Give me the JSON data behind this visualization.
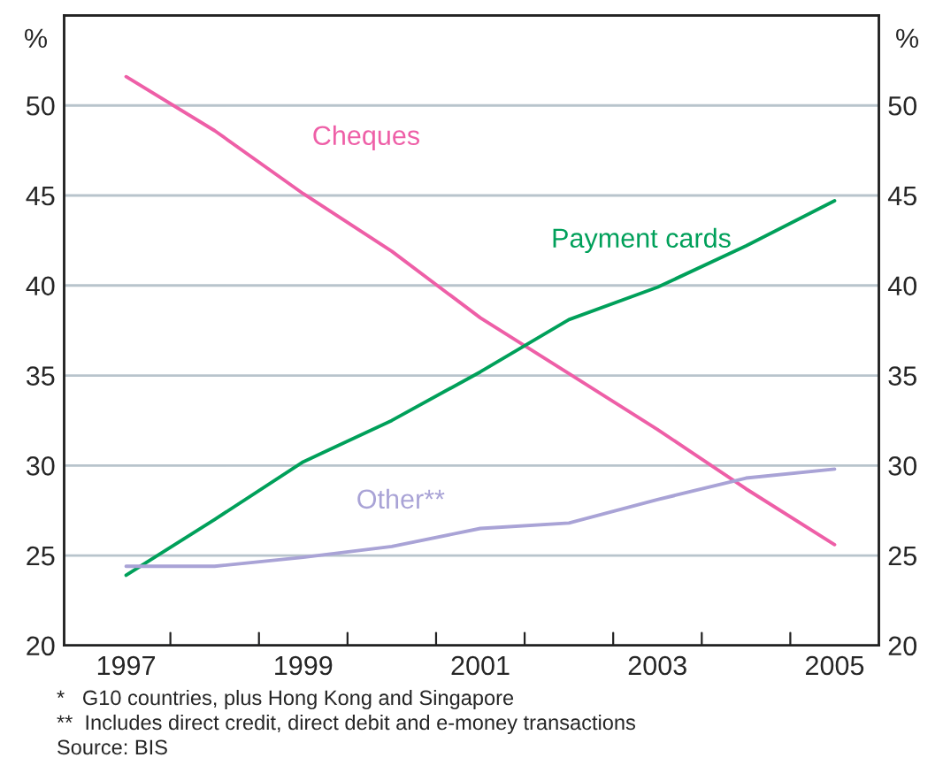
{
  "chart_data": {
    "type": "line",
    "categories": [
      "1997",
      null,
      "1999",
      null,
      "2001",
      null,
      "2003",
      null,
      "2005"
    ],
    "series": [
      {
        "name": "Cheques",
        "color": "#ee5fa7",
        "values": [
          51.6,
          48.6,
          45.1,
          41.9,
          38.2,
          35.1,
          32.0,
          28.7,
          25.6
        ]
      },
      {
        "name": "Payment cards",
        "color": "#00a05a",
        "values": [
          23.9,
          27.0,
          30.2,
          32.5,
          35.2,
          38.1,
          39.9,
          42.2,
          44.7
        ]
      },
      {
        "name": "Other**",
        "color": "#a9a3d6",
        "values": [
          24.4,
          24.4,
          24.9,
          25.5,
          26.5,
          26.8,
          28.1,
          29.3,
          29.8
        ]
      }
    ],
    "ylabel": "%",
    "y2label": "%",
    "ylim": [
      20,
      55
    ],
    "yticks": [
      20,
      25,
      30,
      35,
      40,
      45,
      50
    ],
    "y2lim": [
      20,
      55
    ],
    "y2ticks": [
      20,
      25,
      30,
      35,
      40,
      45,
      50
    ],
    "grid": "y",
    "legend": false,
    "marker": "none",
    "line_style": "solid",
    "annotations": [
      "*   G10 countries, plus Hong Kong and Singapore",
      "**  Includes direct credit, direct debit and e-money transactions",
      "Source: BIS"
    ]
  }
}
